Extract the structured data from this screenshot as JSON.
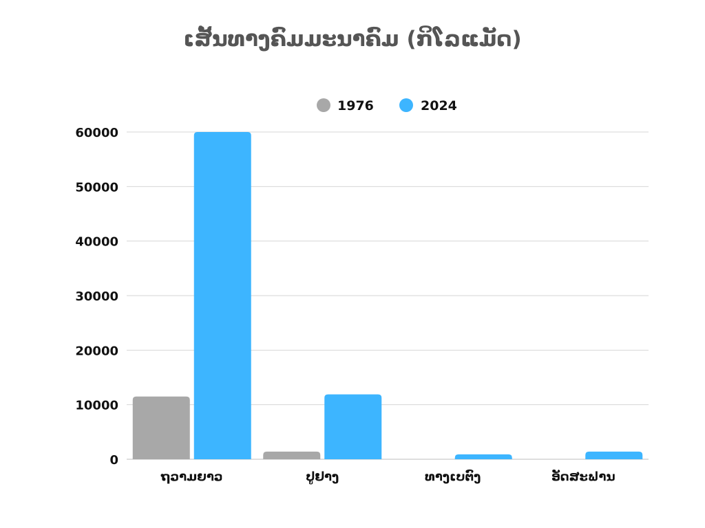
{
  "chart_data": {
    "type": "bar",
    "title": "ເສັ້ນທາງຄົມມະນາຄົມ (ກິໂລແມັດ)",
    "categories": [
      "ຖວາມຍາວ",
      "ປູຢາງ",
      "ທາງເບຕົງ",
      "ອັດສະຟານ"
    ],
    "series": [
      {
        "name": "1976",
        "color": "#a8a8a8",
        "values": [
          11500,
          1400,
          0,
          0
        ]
      },
      {
        "name": "2024",
        "color": "#3db5ff",
        "values": [
          60000,
          11900,
          900,
          1400
        ]
      }
    ],
    "xlabel": "",
    "ylabel": "",
    "ylim": [
      0,
      60000
    ],
    "yticks": [
      0,
      10000,
      20000,
      30000,
      40000,
      50000,
      60000
    ],
    "grid": true,
    "legend_position": "top-center"
  }
}
